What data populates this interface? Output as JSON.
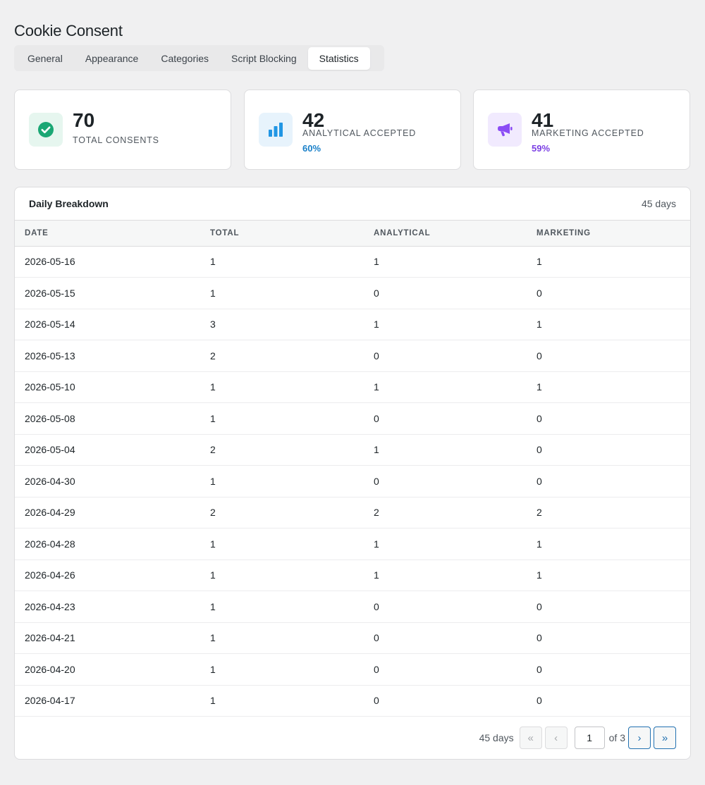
{
  "page": {
    "title": "Cookie Consent"
  },
  "tabs": [
    {
      "label": "General",
      "active": false
    },
    {
      "label": "Appearance",
      "active": false
    },
    {
      "label": "Categories",
      "active": false
    },
    {
      "label": "Script Blocking",
      "active": false
    },
    {
      "label": "Statistics",
      "active": true
    }
  ],
  "stats": {
    "total": {
      "value": "70",
      "label": "TOTAL CONSENTS",
      "icon": "check-circle-icon",
      "color": "#1aa774",
      "bg": "#e6f6ef"
    },
    "analytical": {
      "value": "42",
      "label": "ANALYTICAL ACCEPTED",
      "percent": "60%",
      "icon": "bar-chart-icon",
      "color": "#2196e4",
      "pct_color": "#1a80c9",
      "bg": "#e7f3fc"
    },
    "marketing": {
      "value": "41",
      "label": "MARKETING ACCEPTED",
      "percent": "59%",
      "icon": "megaphone-icon",
      "color": "#8b4cf5",
      "pct_color": "#7b3fe4",
      "bg": "#f1eafe"
    }
  },
  "breakdown": {
    "title": "Daily Breakdown",
    "count": "45 days",
    "columns": [
      "DATE",
      "TOTAL",
      "ANALYTICAL",
      "MARKETING"
    ],
    "rows": [
      [
        "2026-05-16",
        "1",
        "1",
        "1"
      ],
      [
        "2026-05-15",
        "1",
        "0",
        "0"
      ],
      [
        "2026-05-14",
        "3",
        "1",
        "1"
      ],
      [
        "2026-05-13",
        "2",
        "0",
        "0"
      ],
      [
        "2026-05-10",
        "1",
        "1",
        "1"
      ],
      [
        "2026-05-08",
        "1",
        "0",
        "0"
      ],
      [
        "2026-05-04",
        "2",
        "1",
        "0"
      ],
      [
        "2026-04-30",
        "1",
        "0",
        "0"
      ],
      [
        "2026-04-29",
        "2",
        "2",
        "2"
      ],
      [
        "2026-04-28",
        "1",
        "1",
        "1"
      ],
      [
        "2026-04-26",
        "1",
        "1",
        "1"
      ],
      [
        "2026-04-23",
        "1",
        "0",
        "0"
      ],
      [
        "2026-04-21",
        "1",
        "0",
        "0"
      ],
      [
        "2026-04-20",
        "1",
        "0",
        "0"
      ],
      [
        "2026-04-17",
        "1",
        "0",
        "0"
      ]
    ]
  },
  "pagination": {
    "count": "45 days",
    "first": "«",
    "prev": "‹",
    "current_page": "1",
    "of_label": "of 3",
    "next": "›",
    "last": "»"
  }
}
